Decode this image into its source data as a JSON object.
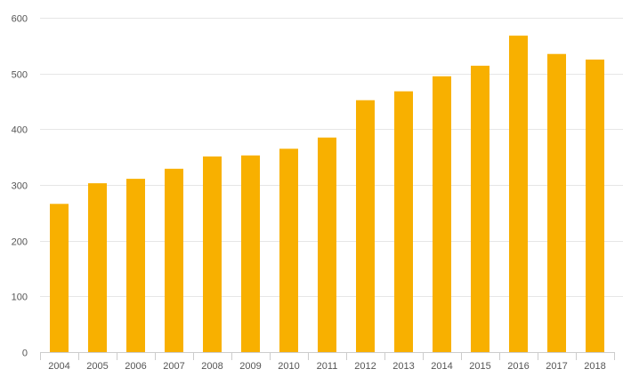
{
  "chart_data": {
    "type": "bar",
    "title": "",
    "xlabel": "",
    "ylabel": "",
    "categories": [
      "2004",
      "2005",
      "2006",
      "2007",
      "2008",
      "2009",
      "2010",
      "2011",
      "2012",
      "2013",
      "2014",
      "2015",
      "2016",
      "2017",
      "2018"
    ],
    "values": [
      266,
      303,
      311,
      329,
      351,
      353,
      365,
      385,
      452,
      468,
      495,
      514,
      568,
      535,
      525
    ],
    "ylim": [
      0,
      600
    ],
    "yticks": [
      0,
      100,
      200,
      300,
      400,
      500,
      600
    ],
    "grid": true,
    "legend": "none",
    "colors": {
      "bar": "#f8b000",
      "grid": "#e6e6e6",
      "axis": "#cccccc",
      "text": "#555555"
    }
  }
}
